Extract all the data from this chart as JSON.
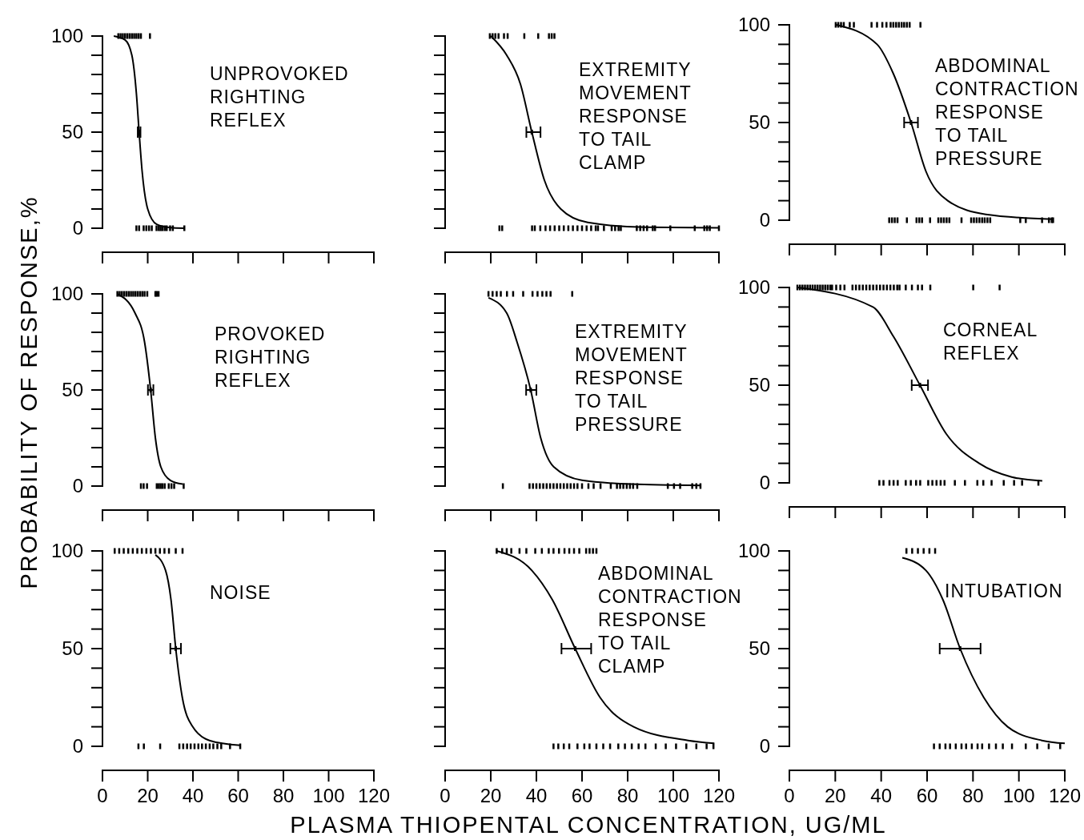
{
  "chart_data": [
    {
      "type": "line",
      "title": "UNPROVOKED\nRIGHTING\nREFLEX",
      "xlim": [
        0,
        120
      ],
      "xticks": [
        0,
        {
          "value": 20,
          "label": null
        },
        {
          "value": 40,
          "label": null
        },
        {
          "value": 60,
          "label": null
        },
        {
          "value": 80,
          "label": null
        },
        {
          "value": 100,
          "label": null
        },
        {
          "value": 120,
          "label": null
        }
      ],
      "ylim": [
        0,
        100
      ],
      "yticks": [
        0,
        {
          "value": 10,
          "label": null
        },
        {
          "value": 20,
          "label": null
        },
        {
          "value": 30,
          "label": null
        },
        {
          "value": 40,
          "label": null
        },
        50,
        {
          "value": 60,
          "label": null
        },
        {
          "value": 70,
          "label": null
        },
        {
          "value": 80,
          "label": null
        },
        {
          "value": 90,
          "label": null
        },
        100
      ],
      "tick_labels": "y",
      "series": [
        {
          "type": "line",
          "color": "#000000",
          "x": [
            5,
            10,
            13,
            15,
            16.2,
            17.5,
            20,
            24,
            30,
            36
          ],
          "values": [
            100,
            98,
            90,
            70,
            50,
            30,
            10,
            2,
            0.3,
            0
          ]
        },
        {
          "type": "scatter",
          "color": "#000000",
          "x": [
            16.2
          ],
          "values": [
            50
          ],
          "xerrors": [
            [
              15.6,
              16.8
            ]
          ]
        },
        {
          "type": "scatter",
          "color": "#000000",
          "x": [
            7,
            8,
            9,
            10,
            11,
            12,
            13,
            14,
            15,
            16,
            17,
            21
          ],
          "values": [
            100,
            100,
            100,
            100,
            100,
            100,
            100,
            100,
            100,
            100,
            100,
            100
          ]
        },
        {
          "type": "scatter",
          "color": "#000000",
          "x": [
            15,
            16.2,
            18.2,
            19.4,
            20.6,
            21.8,
            23.9,
            24.9,
            25.7,
            26.5,
            27.5,
            28.4,
            29.9,
            31.1,
            36.2
          ],
          "values": [
            0,
            0,
            0,
            0,
            0,
            0,
            0,
            0,
            0,
            0,
            0,
            0,
            0,
            0,
            0
          ]
        }
      ]
    },
    {
      "type": "line",
      "title": "EXTREMITY\nMOVEMENT\nRESPONSE\nTO TAIL\nCLAMP",
      "xlim": [
        0,
        120
      ],
      "xticks": [
        0,
        {
          "value": 20,
          "label": null
        },
        {
          "value": 40,
          "label": null
        },
        {
          "value": 60,
          "label": null
        },
        {
          "value": 80,
          "label": null
        },
        {
          "value": 100,
          "label": null
        },
        {
          "value": 120,
          "label": null
        }
      ],
      "ylim": [
        0,
        100
      ],
      "yticks": [
        0,
        {
          "value": 10,
          "label": null
        },
        {
          "value": 20,
          "label": null
        },
        {
          "value": 30,
          "label": null
        },
        {
          "value": 40,
          "label": null
        },
        50,
        {
          "value": 60,
          "label": null
        },
        {
          "value": 70,
          "label": null
        },
        {
          "value": 80,
          "label": null
        },
        {
          "value": 90,
          "label": null
        },
        100
      ],
      "tick_labels": false,
      "series": [
        {
          "type": "line",
          "color": "#000000",
          "x": [
            20,
            27,
            33,
            38,
            43.5,
            50.7,
            62.5,
            87.5,
            120
          ],
          "values": [
            100,
            90,
            75,
            50,
            25,
            10,
            3,
            0.5,
            0.2
          ]
        },
        {
          "type": "scatter",
          "color": "#000000",
          "x": [
            38
          ],
          "values": [
            50
          ],
          "xerrors": [
            [
              35.6,
              41.8
            ]
          ]
        },
        {
          "type": "scatter",
          "color": "#000000",
          "x": [
            19.6,
            20.8,
            22,
            23.4,
            25.8,
            27.4,
            34.7,
            40.8,
            45.5,
            46.7,
            47.9
          ],
          "values": [
            100,
            100,
            100,
            100,
            100,
            100,
            100,
            100,
            100,
            100,
            100
          ]
        },
        {
          "type": "scatter",
          "color": "#000000",
          "x": [
            23.8,
            25,
            38.1,
            39.3,
            41.7,
            44,
            46,
            48,
            50,
            52,
            54,
            56,
            58,
            60,
            62,
            64,
            66,
            67,
            69.6,
            73,
            74.5,
            76,
            77,
            84,
            85.5,
            87,
            88.5,
            91,
            92,
            98.7,
            109.4,
            113.6,
            114.8,
            116,
            120
          ],
          "values": [
            0,
            0,
            0,
            0,
            0,
            0,
            0,
            0,
            0,
            0,
            0,
            0,
            0,
            0,
            0,
            0,
            0,
            0,
            0,
            0,
            0,
            0,
            0,
            0,
            0,
            0,
            0,
            0,
            0,
            0,
            0,
            0,
            0,
            0,
            0
          ]
        }
      ]
    },
    {
      "type": "line",
      "title": "ABDOMINAL\nCONTRACTION\nRESPONSE\nTO TAIL\nPRESSURE",
      "xlim": [
        0,
        120
      ],
      "xticks": [
        0,
        {
          "value": 20,
          "label": null
        },
        {
          "value": 40,
          "label": null
        },
        {
          "value": 60,
          "label": null
        },
        {
          "value": 80,
          "label": null
        },
        {
          "value": 100,
          "label": null
        },
        {
          "value": 120,
          "label": null
        }
      ],
      "ylim": [
        0,
        100
      ],
      "yticks": [
        0,
        {
          "value": 10,
          "label": null
        },
        {
          "value": 20,
          "label": null
        },
        {
          "value": 30,
          "label": null
        },
        {
          "value": 40,
          "label": null
        },
        50,
        {
          "value": 60,
          "label": null
        },
        {
          "value": 70,
          "label": null
        },
        {
          "value": 80,
          "label": null
        },
        {
          "value": 90,
          "label": null
        },
        100
      ],
      "tick_labels": "y",
      "series": [
        {
          "type": "line",
          "color": "#000000",
          "x": [
            20.4,
            38.2,
            45.3,
            53,
            59.5,
            69,
            85.6,
            114.7
          ],
          "values": [
            100,
            90,
            75,
            50,
            25,
            10,
            3,
            0.5
          ]
        },
        {
          "type": "scatter",
          "color": "#000000",
          "x": [
            53
          ],
          "values": [
            50
          ],
          "xerrors": [
            [
              50,
              56
            ]
          ]
        },
        {
          "type": "scatter",
          "color": "#000000",
          "x": [
            20.2,
            21.3,
            22.5,
            23.7,
            26.3,
            28.1,
            35.8,
            38.2,
            40.5,
            42.3,
            44.1,
            45.3,
            46.5,
            47.7,
            48.9,
            50,
            51.2,
            52.4,
            57.1
          ],
          "values": [
            100,
            100,
            100,
            100,
            100,
            100,
            100,
            100,
            100,
            100,
            100,
            100,
            100,
            100,
            100,
            100,
            100,
            100,
            100
          ]
        },
        {
          "type": "scatter",
          "color": "#000000",
          "x": [
            43.5,
            44.7,
            45.9,
            47.1,
            51.2,
            55.4,
            56.6,
            57.8,
            61.3,
            64.9,
            66.1,
            67.3,
            68.5,
            69.7,
            75,
            79.2,
            80.4,
            81.6,
            82.8,
            84,
            85.1,
            86.3,
            87.5,
            100.6,
            103,
            110.1,
            113.1,
            114.3,
            114.9
          ],
          "values": [
            0,
            0,
            0,
            0,
            0,
            0,
            0,
            0,
            0,
            0,
            0,
            0,
            0,
            0,
            0,
            0,
            0,
            0,
            0,
            0,
            0,
            0,
            0,
            0,
            0,
            0,
            0,
            0,
            0
          ]
        }
      ]
    },
    {
      "type": "line",
      "title": "PROVOKED\nRIGHTING\nREFLEX",
      "ylabel": "PROBABILITY OF RESPONSE,%",
      "xlim": [
        0,
        120
      ],
      "xticks": [
        0,
        {
          "value": 20,
          "label": null
        },
        {
          "value": 40,
          "label": null
        },
        {
          "value": 60,
          "label": null
        },
        {
          "value": 80,
          "label": null
        },
        {
          "value": 100,
          "label": null
        },
        {
          "value": 120,
          "label": null
        }
      ],
      "ylim": [
        0,
        100
      ],
      "yticks": [
        0,
        {
          "value": 10,
          "label": null
        },
        {
          "value": 20,
          "label": null
        },
        {
          "value": 30,
          "label": null
        },
        {
          "value": 40,
          "label": null
        },
        50,
        {
          "value": 60,
          "label": null
        },
        {
          "value": 70,
          "label": null
        },
        {
          "value": 80,
          "label": null
        },
        {
          "value": 90,
          "label": null
        },
        100
      ],
      "tick_labels": "y",
      "series": [
        {
          "type": "line",
          "color": "#000000",
          "x": [
            6.6,
            14.4,
            18.6,
            21.3,
            23.4,
            25.8,
            30,
            35.4
          ],
          "values": [
            100,
            90,
            75,
            50,
            25,
            10,
            3,
            1
          ]
        },
        {
          "type": "scatter",
          "color": "#000000",
          "x": [
            21.3
          ],
          "values": [
            50
          ],
          "xerrors": [
            [
              20.1,
              22.5
            ]
          ]
        },
        {
          "type": "scatter",
          "color": "#000000",
          "x": [
            6.6,
            7.6,
            8.6,
            9.6,
            10.6,
            11.6,
            12.6,
            13.6,
            14.6,
            15.6,
            16.6,
            17.6,
            18.6,
            19.8,
            23.4,
            24,
            24.8
          ],
          "values": [
            100,
            100,
            100,
            100,
            100,
            100,
            100,
            100,
            100,
            100,
            100,
            100,
            100,
            100,
            100,
            100,
            100
          ]
        },
        {
          "type": "scatter",
          "color": "#000000",
          "x": [
            17,
            18.2,
            19.7,
            24,
            24.9,
            25.7,
            26.5,
            27.5,
            29.3,
            30.5,
            31.7,
            35.9
          ],
          "values": [
            0,
            0,
            0,
            0,
            0,
            0,
            0,
            0,
            0,
            0,
            0,
            0
          ]
        }
      ]
    },
    {
      "type": "line",
      "title": "EXTREMITY\nMOVEMENT\nRESPONSE\nTO TAIL\nPRESSURE",
      "xlim": [
        0,
        120
      ],
      "xticks": [
        0,
        {
          "value": 20,
          "label": null
        },
        {
          "value": 40,
          "label": null
        },
        {
          "value": 60,
          "label": null
        },
        {
          "value": 80,
          "label": null
        },
        {
          "value": 100,
          "label": null
        },
        {
          "value": 120,
          "label": null
        }
      ],
      "ylim": [
        0,
        100
      ],
      "yticks": [
        0,
        {
          "value": 10,
          "label": null
        },
        {
          "value": 20,
          "label": null
        },
        {
          "value": 30,
          "label": null
        },
        {
          "value": 40,
          "label": null
        },
        50,
        {
          "value": 60,
          "label": null
        },
        {
          "value": 70,
          "label": null
        },
        {
          "value": 80,
          "label": null
        },
        {
          "value": 90,
          "label": null
        },
        100
      ],
      "tick_labels": false,
      "series": [
        {
          "type": "line",
          "color": "#000000",
          "x": [
            19,
            27,
            31.5,
            37.5,
            41.9,
            47.6,
            60,
            81.5,
            111.9
          ],
          "values": [
            98,
            90,
            75,
            50,
            25,
            10,
            3,
            1,
            0.3
          ]
        },
        {
          "type": "scatter",
          "color": "#000000",
          "x": [
            37.5
          ],
          "values": [
            50
          ],
          "xerrors": [
            [
              35.5,
              40
            ]
          ]
        },
        {
          "type": "scatter",
          "color": "#000000",
          "x": [
            19,
            20.8,
            22.6,
            24.4,
            27.1,
            29.8,
            34.2,
            38.3,
            40.5,
            42.6,
            44.4,
            46.2,
            55.7
          ],
          "values": [
            100,
            100,
            100,
            100,
            100,
            100,
            100,
            100,
            100,
            100,
            100,
            100,
            100
          ]
        },
        {
          "type": "scatter",
          "color": "#000000",
          "x": [
            25.3,
            37,
            38.5,
            40,
            41.5,
            43,
            44.5,
            46,
            47.5,
            49,
            50.5,
            52,
            53.5,
            55,
            56.5,
            58,
            60,
            62.8,
            65.1,
            68.1,
            72.6,
            75.3,
            76.7,
            78.1,
            79.6,
            81,
            82.4,
            84.2,
            97.6,
            100.3,
            103,
            108.3,
            110.1,
            111.9
          ],
          "values": [
            0,
            0,
            0,
            0,
            0,
            0,
            0,
            0,
            0,
            0,
            0,
            0,
            0,
            0,
            0,
            0,
            0,
            0,
            0,
            0,
            0,
            0,
            0,
            0,
            0,
            0,
            0,
            0,
            0,
            0,
            0,
            0,
            0,
            0
          ]
        }
      ]
    },
    {
      "type": "line",
      "title": "CORNEAL\nREFLEX",
      "xlim": [
        0,
        120
      ],
      "xticks": [
        0,
        {
          "value": 20,
          "label": null
        },
        {
          "value": 40,
          "label": null
        },
        {
          "value": 60,
          "label": null
        },
        {
          "value": 80,
          "label": null
        },
        {
          "value": 100,
          "label": null
        },
        {
          "value": 120,
          "label": null
        }
      ],
      "ylim": [
        0,
        100
      ],
      "yticks": [
        0,
        {
          "value": 10,
          "label": null
        },
        {
          "value": 20,
          "label": null
        },
        {
          "value": 30,
          "label": null
        },
        {
          "value": 40,
          "label": null
        },
        50,
        {
          "value": 60,
          "label": null
        },
        {
          "value": 70,
          "label": null
        },
        {
          "value": 80,
          "label": null
        },
        {
          "value": 90,
          "label": null
        },
        100
      ],
      "tick_labels": "y",
      "series": [
        {
          "type": "line",
          "color": "#000000",
          "x": [
            3.5,
            36.4,
            45.3,
            56.9,
            68.4,
            82.7,
            96.9,
            110.2
          ],
          "values": [
            100,
            90,
            75,
            50,
            25,
            10,
            3,
            1
          ]
        },
        {
          "type": "scatter",
          "color": "#000000",
          "x": [
            56.9
          ],
          "values": [
            50
          ],
          "xerrors": [
            [
              53.3,
              60.4
            ]
          ]
        },
        {
          "type": "scatter",
          "color": "#000000",
          "x": [
            3.5,
            4.6,
            5.7,
            6.8,
            7.9,
            9,
            10.1,
            11.2,
            12.3,
            13.4,
            14.5,
            15.6,
            16.7,
            17.8,
            18.6,
            20.4,
            22.2,
            24,
            27.5,
            29,
            30.5,
            32,
            33.5,
            35,
            36.5,
            38,
            39.5,
            41,
            42.5,
            44,
            45.5,
            47,
            48,
            50.7,
            53.4,
            56,
            57.8,
            61.4,
            80.1,
            91.6
          ],
          "values": [
            100,
            100,
            100,
            100,
            100,
            100,
            100,
            100,
            100,
            100,
            100,
            100,
            100,
            100,
            100,
            100,
            100,
            100,
            100,
            100,
            100,
            100,
            100,
            100,
            100,
            100,
            100,
            100,
            100,
            100,
            100,
            100,
            100,
            100,
            100,
            100,
            100,
            100,
            100,
            100
          ]
        },
        {
          "type": "scatter",
          "color": "#000000",
          "x": [
            39.2,
            41,
            43.6,
            45.4,
            47.2,
            50.7,
            52.9,
            55.2,
            57,
            60.5,
            62.3,
            64.1,
            65.9,
            67.6,
            72.1,
            76.5,
            81.9,
            84.5,
            88.1,
            93.4,
            97.9,
            101.4,
            108.5
          ],
          "values": [
            0,
            0,
            0,
            0,
            0,
            0,
            0,
            0,
            0,
            0,
            0,
            0,
            0,
            0,
            0,
            0,
            0,
            0,
            0,
            0,
            0,
            0,
            0
          ]
        }
      ]
    },
    {
      "type": "line",
      "title": "NOISE",
      "xlim": [
        0,
        120
      ],
      "xticks": [
        0,
        20,
        40,
        60,
        80,
        100,
        120
      ],
      "ylim": [
        0,
        100
      ],
      "yticks": [
        0,
        {
          "value": 10,
          "label": null
        },
        {
          "value": 20,
          "label": null
        },
        {
          "value": 30,
          "label": null
        },
        {
          "value": 40,
          "label": null
        },
        50,
        {
          "value": 60,
          "label": null
        },
        {
          "value": 70,
          "label": null
        },
        {
          "value": 80,
          "label": null
        },
        {
          "value": 90,
          "label": null
        },
        100
      ],
      "series": [
        {
          "type": "line",
          "color": "#000000",
          "x": [
            23.4,
            27.9,
            30.3,
            32.4,
            35.3,
            39.9,
            47.3,
            60.9
          ],
          "values": [
            98,
            90,
            75,
            50,
            25,
            10,
            3,
            0.5
          ]
        },
        {
          "type": "scatter",
          "color": "#000000",
          "x": [
            32.4
          ],
          "values": [
            50
          ],
          "xerrors": [
            [
              30,
              34.7
            ]
          ]
        },
        {
          "type": "scatter",
          "color": "#000000",
          "x": [
            5.4,
            7.4,
            9.4,
            11.4,
            13.4,
            15.4,
            17.4,
            19.4,
            21.4,
            23.4,
            25.4,
            27.4,
            29.4,
            32.4,
            35.4
          ],
          "values": [
            100,
            100,
            100,
            100,
            100,
            100,
            100,
            100,
            100,
            100,
            100,
            100,
            100,
            100,
            100
          ]
        },
        {
          "type": "scatter",
          "color": "#000000",
          "x": [
            15.9,
            18.3,
            25.5,
            34,
            35.7,
            37.4,
            39,
            40.7,
            42.4,
            44,
            45.7,
            47.4,
            49,
            50.8,
            52.5,
            56.4,
            60.9
          ],
          "values": [
            0,
            0,
            0,
            0,
            0,
            0,
            0,
            0,
            0,
            0,
            0,
            0,
            0,
            0,
            0,
            0,
            0
          ]
        }
      ]
    },
    {
      "type": "line",
      "title": "ABDOMINAL\nCONTRACTION\nRESPONSE\nTO TAIL\nCLAMP",
      "xlabel": "PLASMA THIOPENTAL CONCENTRATION, UG/ML",
      "xlim": [
        0,
        120
      ],
      "xticks": [
        0,
        20,
        40,
        60,
        80,
        100,
        120
      ],
      "ylim": [
        0,
        100
      ],
      "yticks": [
        0,
        {
          "value": 10,
          "label": null
        },
        {
          "value": 20,
          "label": null
        },
        {
          "value": 30,
          "label": null
        },
        {
          "value": 40,
          "label": null
        },
        {
          "value": 50,
          "label": null
        },
        {
          "value": 60,
          "label": null
        },
        {
          "value": 70,
          "label": null
        },
        {
          "value": 80,
          "label": null
        },
        {
          "value": 90,
          "label": null
        },
        {
          "value": 100,
          "label": null
        }
      ],
      "tick_labels": "x",
      "series": [
        {
          "type": "line",
          "color": "#000000",
          "x": [
            22.6,
            38,
            47,
            57,
            67.9,
            82.6,
            106.5,
            118
          ],
          "values": [
            100,
            90,
            75,
            50,
            25,
            10,
            3,
            1.5
          ]
        },
        {
          "type": "scatter",
          "color": "#000000",
          "x": [
            57
          ],
          "values": [
            50
          ],
          "xerrors": [
            [
              51,
              64
            ]
          ]
        },
        {
          "type": "scatter",
          "color": "#000000",
          "x": [
            22.6,
            25,
            27,
            29,
            32.6,
            35.6,
            39.5,
            42.4,
            45.4,
            47.5,
            49.9,
            52.3,
            54.4,
            56.5,
            58.8,
            61.8,
            63.3,
            64.8,
            66.3
          ],
          "values": [
            100,
            100,
            100,
            100,
            100,
            100,
            100,
            100,
            100,
            100,
            100,
            100,
            100,
            100,
            100,
            100,
            100,
            100,
            100
          ]
        },
        {
          "type": "scatter",
          "color": "#000000",
          "x": [
            47.5,
            49.6,
            52,
            54.4,
            58,
            61,
            63.3,
            66.3,
            69.3,
            72.3,
            75.9,
            78.8,
            81.8,
            84.8,
            87.8,
            92.3,
            96.7,
            101.2,
            105.7,
            110.1,
            114.6,
            117.6
          ],
          "values": [
            0,
            0,
            0,
            0,
            0,
            0,
            0,
            0,
            0,
            0,
            0,
            0,
            0,
            0,
            0,
            0,
            0,
            0,
            0,
            0,
            0,
            0
          ]
        }
      ]
    },
    {
      "type": "line",
      "title": "INTUBATION",
      "xlim": [
        0,
        120
      ],
      "xticks": [
        0,
        20,
        40,
        60,
        80,
        100,
        120
      ],
      "ylim": [
        0,
        100
      ],
      "yticks": [
        0,
        {
          "value": 10,
          "label": null
        },
        {
          "value": 20,
          "label": null
        },
        {
          "value": 30,
          "label": null
        },
        {
          "value": 40,
          "label": null
        },
        50,
        {
          "value": 60,
          "label": null
        },
        {
          "value": 70,
          "label": null
        },
        {
          "value": 80,
          "label": null
        },
        {
          "value": 90,
          "label": null
        },
        100
      ],
      "series": [
        {
          "type": "line",
          "color": "#000000",
          "x": [
            49.2,
            59.5,
            66.9,
            74.4,
            84.7,
            95.1,
            110,
            120
          ],
          "values": [
            96.5,
            90,
            75,
            50,
            25,
            10,
            3,
            1.5
          ]
        },
        {
          "type": "scatter",
          "color": "#000000",
          "x": [
            74.4
          ],
          "values": [
            50
          ],
          "xerrors": [
            [
              65.5,
              83.3
            ]
          ]
        },
        {
          "type": "scatter",
          "color": "#000000",
          "x": [
            51,
            53.5,
            56,
            58.5,
            61,
            63.5
          ],
          "values": [
            100,
            100,
            100,
            100,
            100,
            100
          ]
        },
        {
          "type": "scatter",
          "color": "#000000",
          "x": [
            63,
            65.5,
            68,
            70,
            72.5,
            75,
            77,
            79.5,
            82,
            84,
            87,
            90,
            93,
            97,
            103,
            108,
            113,
            118
          ],
          "values": [
            0,
            0,
            0,
            0,
            0,
            0,
            0,
            0,
            0,
            0,
            0,
            0,
            0,
            0,
            0,
            0,
            0,
            0
          ]
        }
      ]
    }
  ]
}
